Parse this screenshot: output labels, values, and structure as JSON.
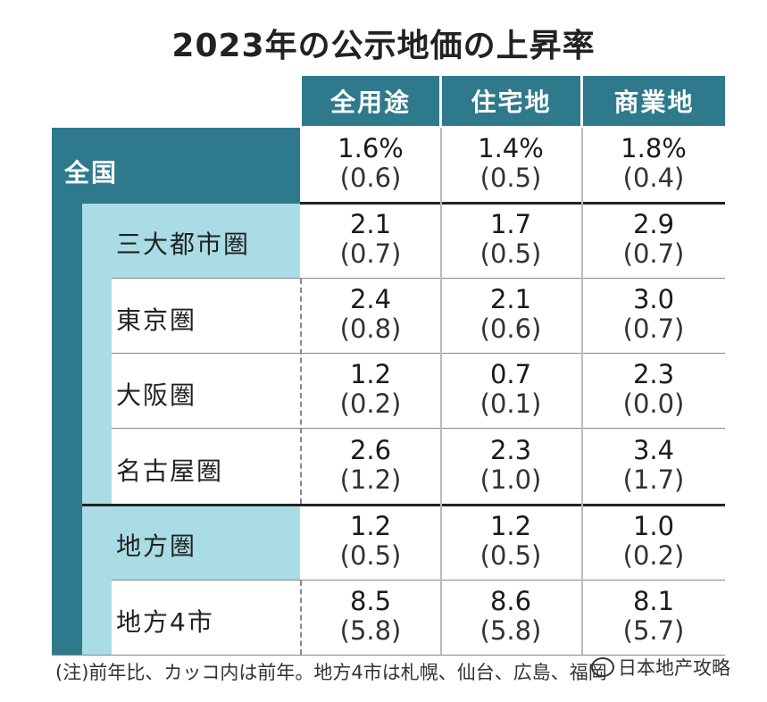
{
  "title": "2023年の公示地価の上昇率",
  "columns": [
    "全用途",
    "住宅地",
    "商業地"
  ],
  "rows": [
    {
      "label": "全国",
      "values": [
        "1.6%",
        "1.4%",
        "1.8%"
      ],
      "prev": [
        "(0.6)",
        "(0.5)",
        "(0.4)"
      ]
    },
    {
      "label": "三大都市圏",
      "values": [
        "2.1",
        "1.7",
        "2.9"
      ],
      "prev": [
        "(0.7)",
        "(0.5)",
        "(0.7)"
      ]
    },
    {
      "label": "東京圏",
      "values": [
        "2.4",
        "2.1",
        "3.0"
      ],
      "prev": [
        "(0.8)",
        "(0.6)",
        "(0.7)"
      ]
    },
    {
      "label": "大阪圏",
      "values": [
        "1.2",
        "0.7",
        "2.3"
      ],
      "prev": [
        "(0.2)",
        "(0.1)",
        "(0.0)"
      ]
    },
    {
      "label": "名古屋圏",
      "values": [
        "2.6",
        "2.3",
        "3.4"
      ],
      "prev": [
        "(1.2)",
        "(1.0)",
        "(1.7)"
      ]
    },
    {
      "label": "地方圏",
      "values": [
        "1.2",
        "1.2",
        "1.0"
      ],
      "prev": [
        "(0.5)",
        "(0.5)",
        "(0.2)"
      ]
    },
    {
      "label": "地方4市",
      "values": [
        "8.5",
        "8.6",
        "8.1"
      ],
      "prev": [
        "(5.8)",
        "(5.8)",
        "(5.7)"
      ]
    }
  ],
  "footnote": "(注)前年比、カッコ内は前年。地方4市は札幌、仙台、広島、福岡",
  "watermark": "日本地产攻略",
  "colors": {
    "header": "#2e7a8c",
    "light": "#a9dce4"
  }
}
